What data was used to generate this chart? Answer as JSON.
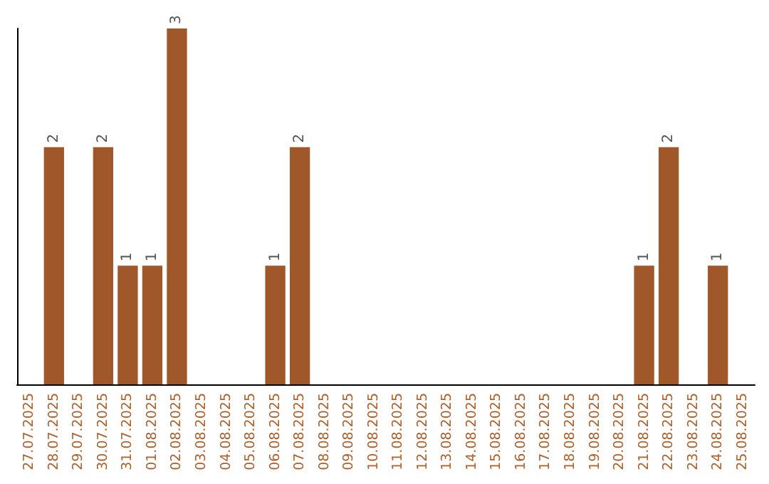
{
  "chart_data": {
    "type": "bar",
    "categories": [
      "27.07.2025",
      "28.07.2025",
      "29.07.2025",
      "30.07.2025",
      "31.07.2025",
      "01.08.2025",
      "02.08.2025",
      "03.08.2025",
      "04.08.2025",
      "05.08.2025",
      "06.08.2025",
      "07.08.2025",
      "08.08.2025",
      "09.08.2025",
      "10.08.2025",
      "11.08.2025",
      "12.08.2025",
      "13.08.2025",
      "14.08.2025",
      "15.08.2025",
      "16.08.2025",
      "17.08.2025",
      "18.08.2025",
      "19.08.2025",
      "20.08.2025",
      "21.08.2025",
      "22.08.2025",
      "23.08.2025",
      "24.08.2025",
      "25.08.2025"
    ],
    "values": [
      0,
      2,
      0,
      2,
      1,
      1,
      3,
      0,
      0,
      0,
      1,
      2,
      0,
      0,
      0,
      0,
      0,
      0,
      0,
      0,
      0,
      0,
      0,
      0,
      0,
      1,
      2,
      0,
      1,
      0
    ],
    "value_labels": [
      null,
      "2",
      null,
      "2",
      "1",
      "1",
      "3",
      null,
      null,
      null,
      "1",
      "2",
      null,
      null,
      null,
      null,
      null,
      null,
      null,
      null,
      null,
      null,
      null,
      null,
      null,
      "1",
      "2",
      null,
      "1",
      null
    ],
    "color": "#a0582a",
    "tick_labels": "x"
  }
}
